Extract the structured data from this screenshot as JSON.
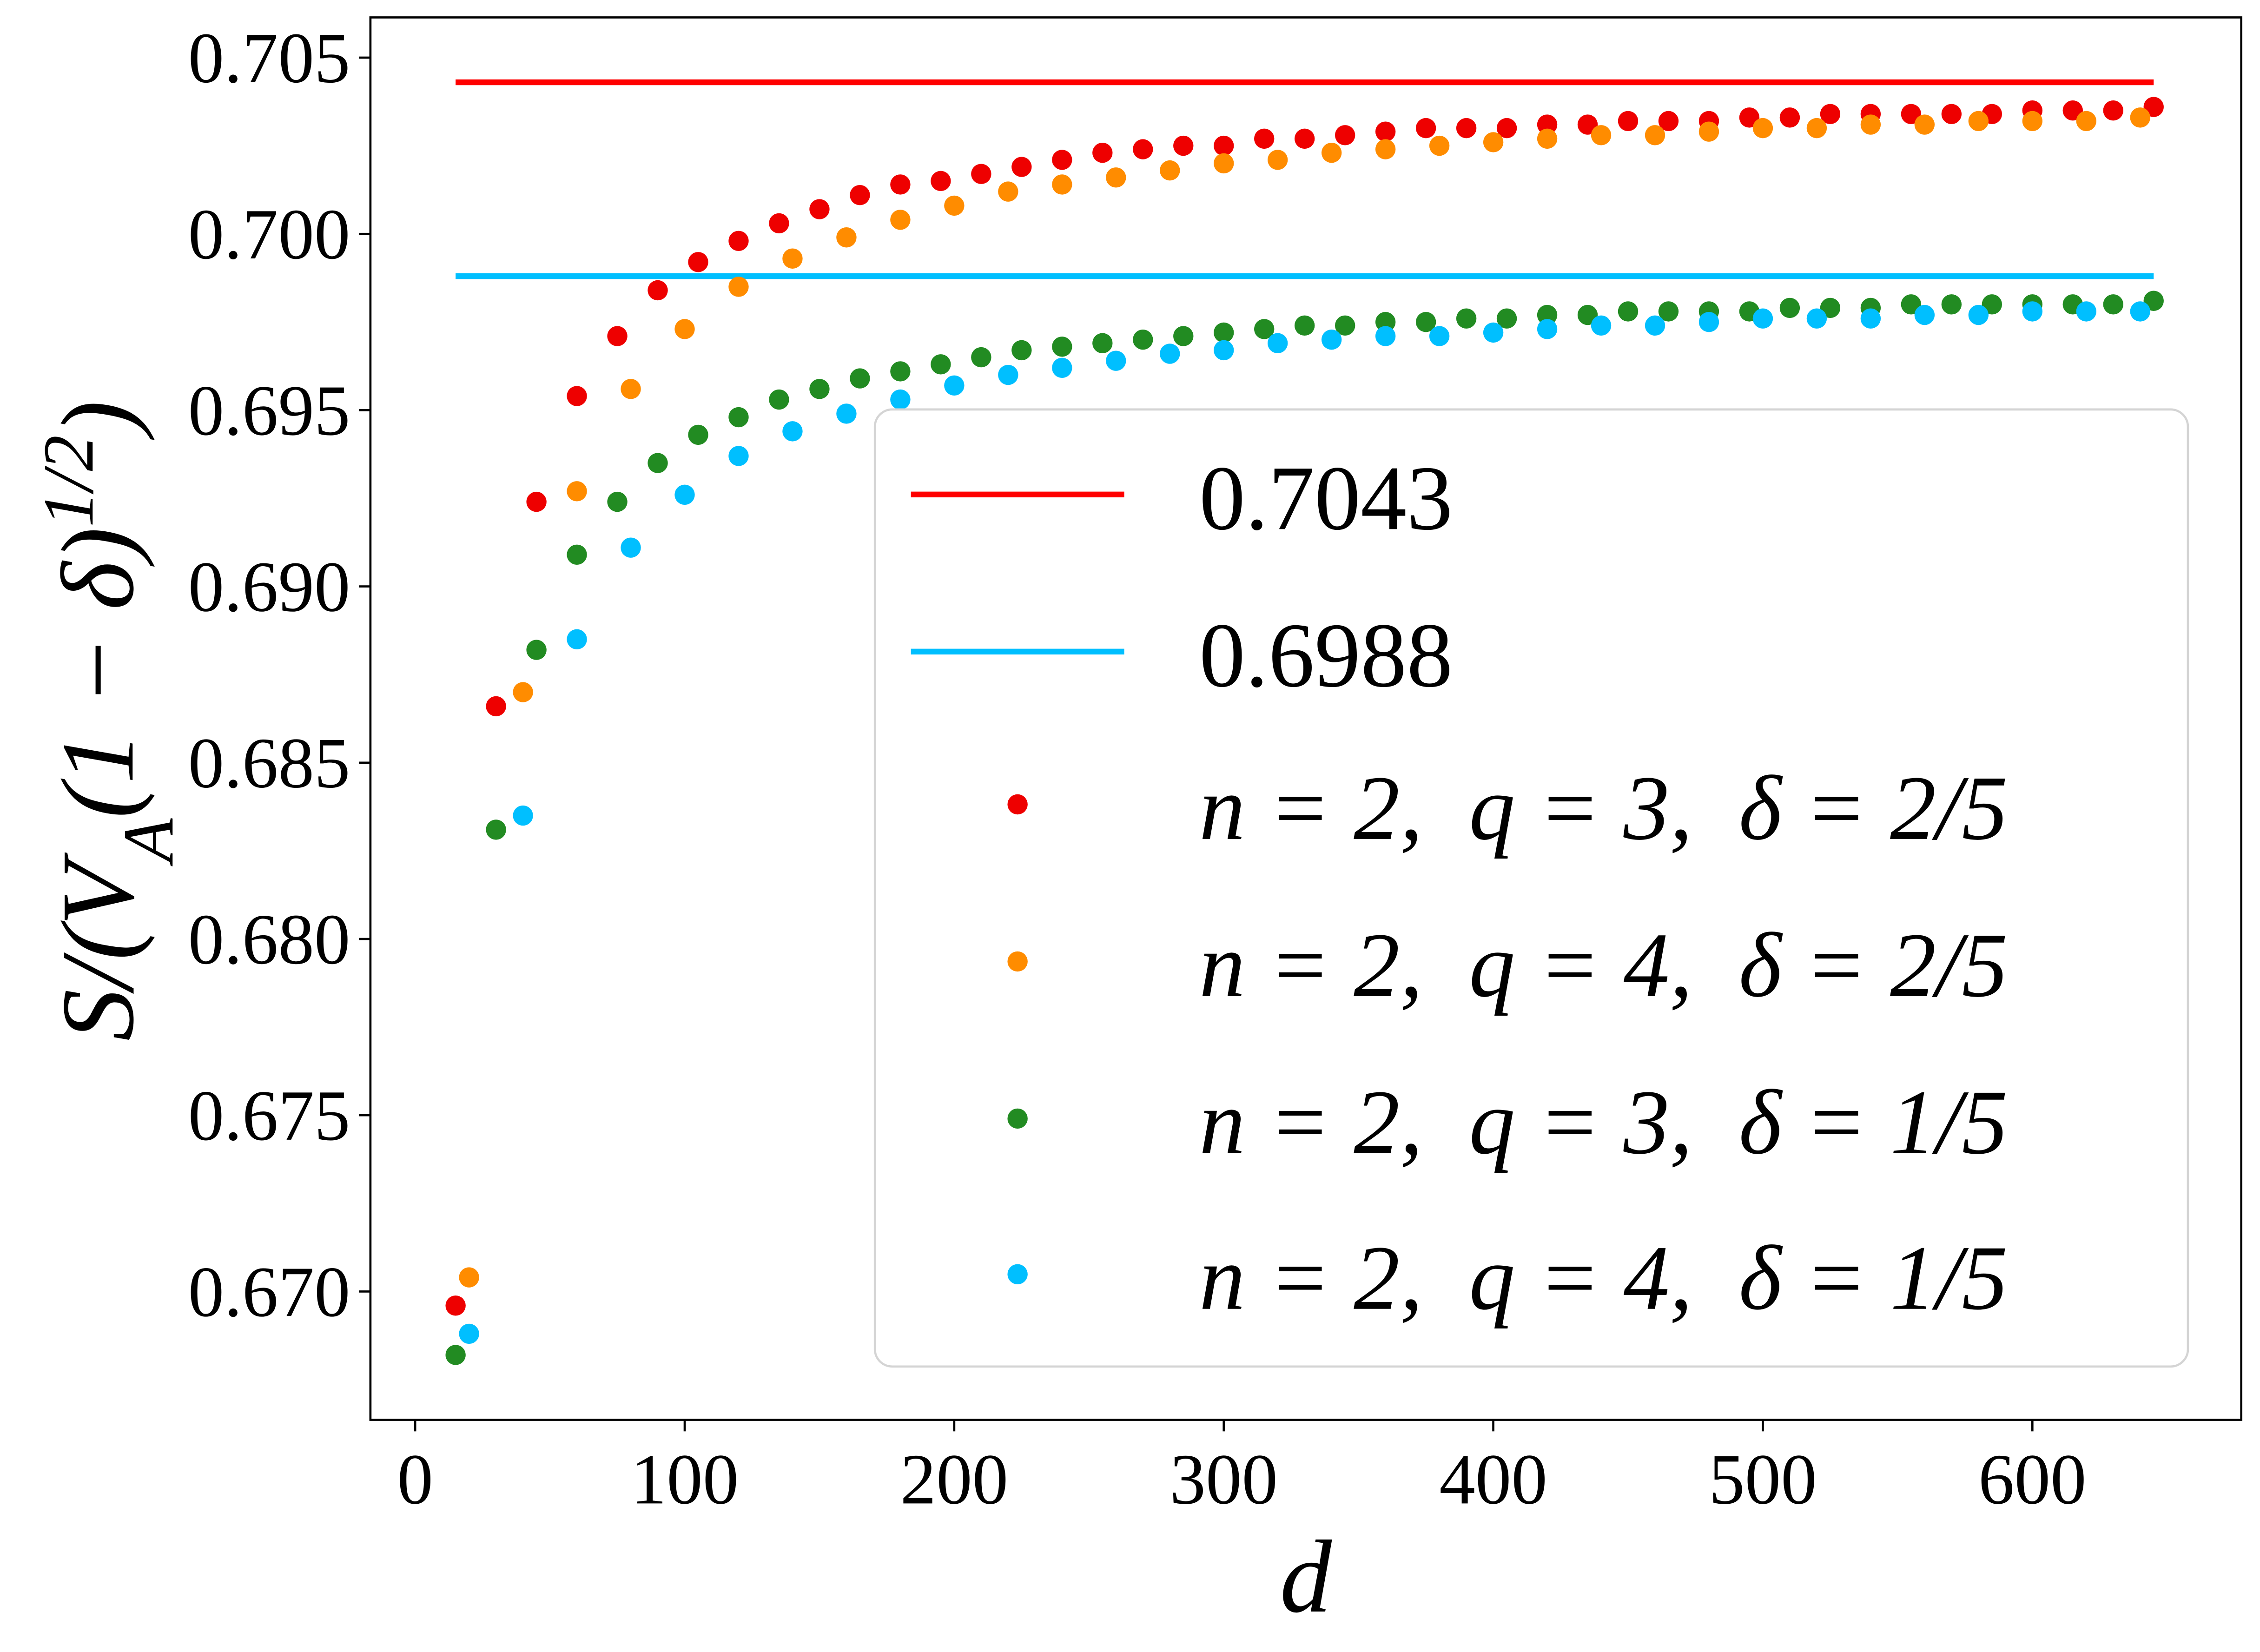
{
  "chart_data": {
    "type": "scatter",
    "xlabel": "d",
    "ylabel": [
      {
        "text": "S/(V"
      },
      {
        "text": "A",
        "shift": "sub"
      },
      {
        "text": "(1 − δ)"
      },
      {
        "text": "1/2",
        "shift": "sup"
      },
      {
        "text": ")"
      }
    ],
    "xlim": [
      -16.6,
      677.5
    ],
    "ylim": [
      0.66636,
      0.70614
    ],
    "xticks": [
      0,
      100,
      200,
      300,
      400,
      500,
      600
    ],
    "yticks": [
      {
        "value": 0.67,
        "label": "0.670"
      },
      0.675,
      {
        "value": 0.68,
        "label": "0.680"
      },
      0.685,
      {
        "value": 0.69,
        "label": "0.690"
      },
      0.695,
      {
        "value": 0.7,
        "label": "0.700"
      },
      0.705
    ],
    "hlines": [
      {
        "name": "0.7043",
        "value": 0.7043,
        "color": "#ff0000",
        "xrange": [
          15,
          645
        ]
      },
      {
        "name": "0.6988",
        "value": 0.6988,
        "color": "#00bfff",
        "xrange": [
          15,
          645
        ]
      }
    ],
    "series": [
      {
        "name": "n = 2,  q = 3,  δ = 2/5",
        "color": "#ee0000",
        "x": [
          15,
          30,
          45,
          60,
          75,
          90,
          105,
          120,
          135,
          150,
          165,
          180,
          195,
          210,
          225,
          240,
          255,
          270,
          285,
          300,
          315,
          330,
          345,
          360,
          375,
          390,
          405,
          420,
          435,
          450,
          465,
          480,
          495,
          510,
          525,
          540,
          555,
          570,
          585,
          600,
          615,
          630,
          645
        ],
        "values": [
          0.6696,
          0.6866,
          0.6924,
          0.6954,
          0.6971,
          0.6984,
          0.6992,
          0.6998,
          0.7003,
          0.7007,
          0.7011,
          0.7014,
          0.7015,
          0.7017,
          0.7019,
          0.7021,
          0.7023,
          0.7024,
          0.7025,
          0.7025,
          0.7027,
          0.7027,
          0.7028,
          0.7029,
          0.703,
          0.703,
          0.703,
          0.7031,
          0.7031,
          0.7032,
          0.7032,
          0.7032,
          0.7033,
          0.7033,
          0.7034,
          0.7034,
          0.7034,
          0.7034,
          0.7034,
          0.7035,
          0.7035,
          0.7035,
          0.7036
        ]
      },
      {
        "name": "n = 2,  q = 4,  δ = 2/5",
        "color": "#ff8c00",
        "x": [
          20,
          40,
          60,
          80,
          100,
          120,
          140,
          160,
          180,
          200,
          220,
          240,
          260,
          280,
          300,
          320,
          340,
          360,
          380,
          400,
          420,
          440,
          460,
          480,
          500,
          520,
          540,
          560,
          580,
          600,
          620,
          640
        ],
        "values": [
          0.6704,
          0.687,
          0.6927,
          0.6956,
          0.6973,
          0.6985,
          0.6993,
          0.6999,
          0.7004,
          0.7008,
          0.7012,
          0.7014,
          0.7016,
          0.7018,
          0.702,
          0.7021,
          0.7023,
          0.7024,
          0.7025,
          0.7026,
          0.7027,
          0.7028,
          0.7028,
          0.7029,
          0.703,
          0.703,
          0.7031,
          0.7031,
          0.7032,
          0.7032,
          0.7032,
          0.7033
        ]
      },
      {
        "name": "n = 2,  q = 3,  δ = 1/5",
        "color": "#228b22",
        "x": [
          15,
          30,
          45,
          60,
          75,
          90,
          105,
          120,
          135,
          150,
          165,
          180,
          195,
          210,
          225,
          240,
          255,
          270,
          285,
          300,
          315,
          330,
          345,
          360,
          375,
          390,
          405,
          420,
          435,
          450,
          465,
          480,
          495,
          510,
          525,
          540,
          555,
          570,
          585,
          600,
          615,
          630,
          645
        ],
        "values": [
          0.6682,
          0.6831,
          0.6882,
          0.6909,
          0.6924,
          0.6935,
          0.6943,
          0.6948,
          0.6953,
          0.6956,
          0.6959,
          0.6961,
          0.6963,
          0.6965,
          0.6967,
          0.6968,
          0.6969,
          0.697,
          0.6971,
          0.6972,
          0.6973,
          0.6974,
          0.6974,
          0.6975,
          0.6975,
          0.6976,
          0.6976,
          0.6977,
          0.6977,
          0.6978,
          0.6978,
          0.6978,
          0.6978,
          0.6979,
          0.6979,
          0.6979,
          0.698,
          0.698,
          0.698,
          0.698,
          0.698,
          0.698,
          0.6981
        ]
      },
      {
        "name": "n = 2,  q = 4,  δ = 1/5",
        "color": "#00bfff",
        "x": [
          20,
          40,
          60,
          80,
          100,
          120,
          140,
          160,
          180,
          200,
          220,
          240,
          260,
          280,
          300,
          320,
          340,
          360,
          380,
          400,
          420,
          440,
          460,
          480,
          500,
          520,
          540,
          560,
          580,
          600,
          620,
          640
        ],
        "values": [
          0.6688,
          0.6835,
          0.6885,
          0.6911,
          0.6926,
          0.6937,
          0.6944,
          0.6949,
          0.6953,
          0.6957,
          0.696,
          0.6962,
          0.6964,
          0.6966,
          0.6967,
          0.6969,
          0.697,
          0.6971,
          0.6971,
          0.6972,
          0.6973,
          0.6974,
          0.6974,
          0.6975,
          0.6976,
          0.6976,
          0.6976,
          0.6977,
          0.6977,
          0.6978,
          0.6978,
          0.6978
        ]
      }
    ]
  }
}
